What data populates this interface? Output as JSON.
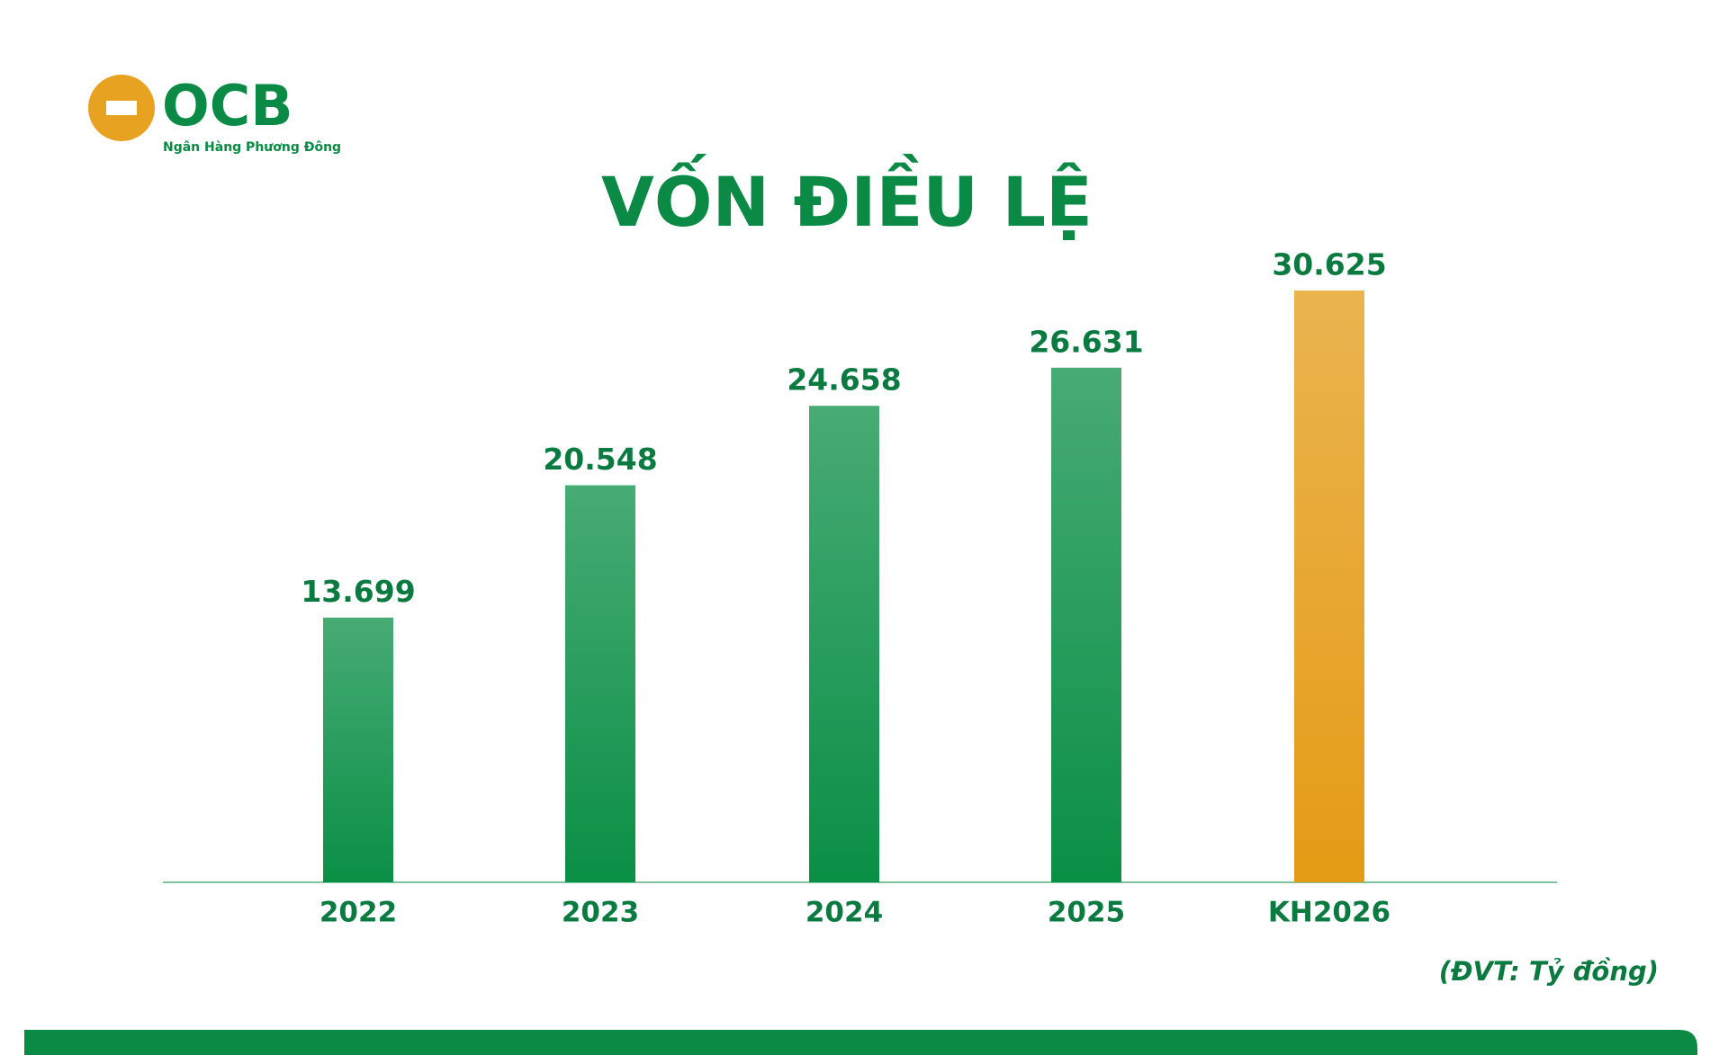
{
  "logo": {
    "name": "OCB",
    "tagline": "Ngân Hàng Phương Đông"
  },
  "chart_data": {
    "type": "bar",
    "title": "VỐN ĐIỀU LỆ",
    "categories": [
      "2022",
      "2023",
      "2024",
      "2025",
      "KH2026"
    ],
    "values": [
      13699,
      20548,
      24658,
      26631,
      30625
    ],
    "value_labels": [
      "13.699",
      "20.548",
      "24.658",
      "26.631",
      "30.625"
    ],
    "colors": [
      "#0a8f46",
      "#0a8f46",
      "#0a8f46",
      "#0a8f46",
      "#e49b15"
    ],
    "note": "(ĐVT: Tỷ đồng)"
  }
}
